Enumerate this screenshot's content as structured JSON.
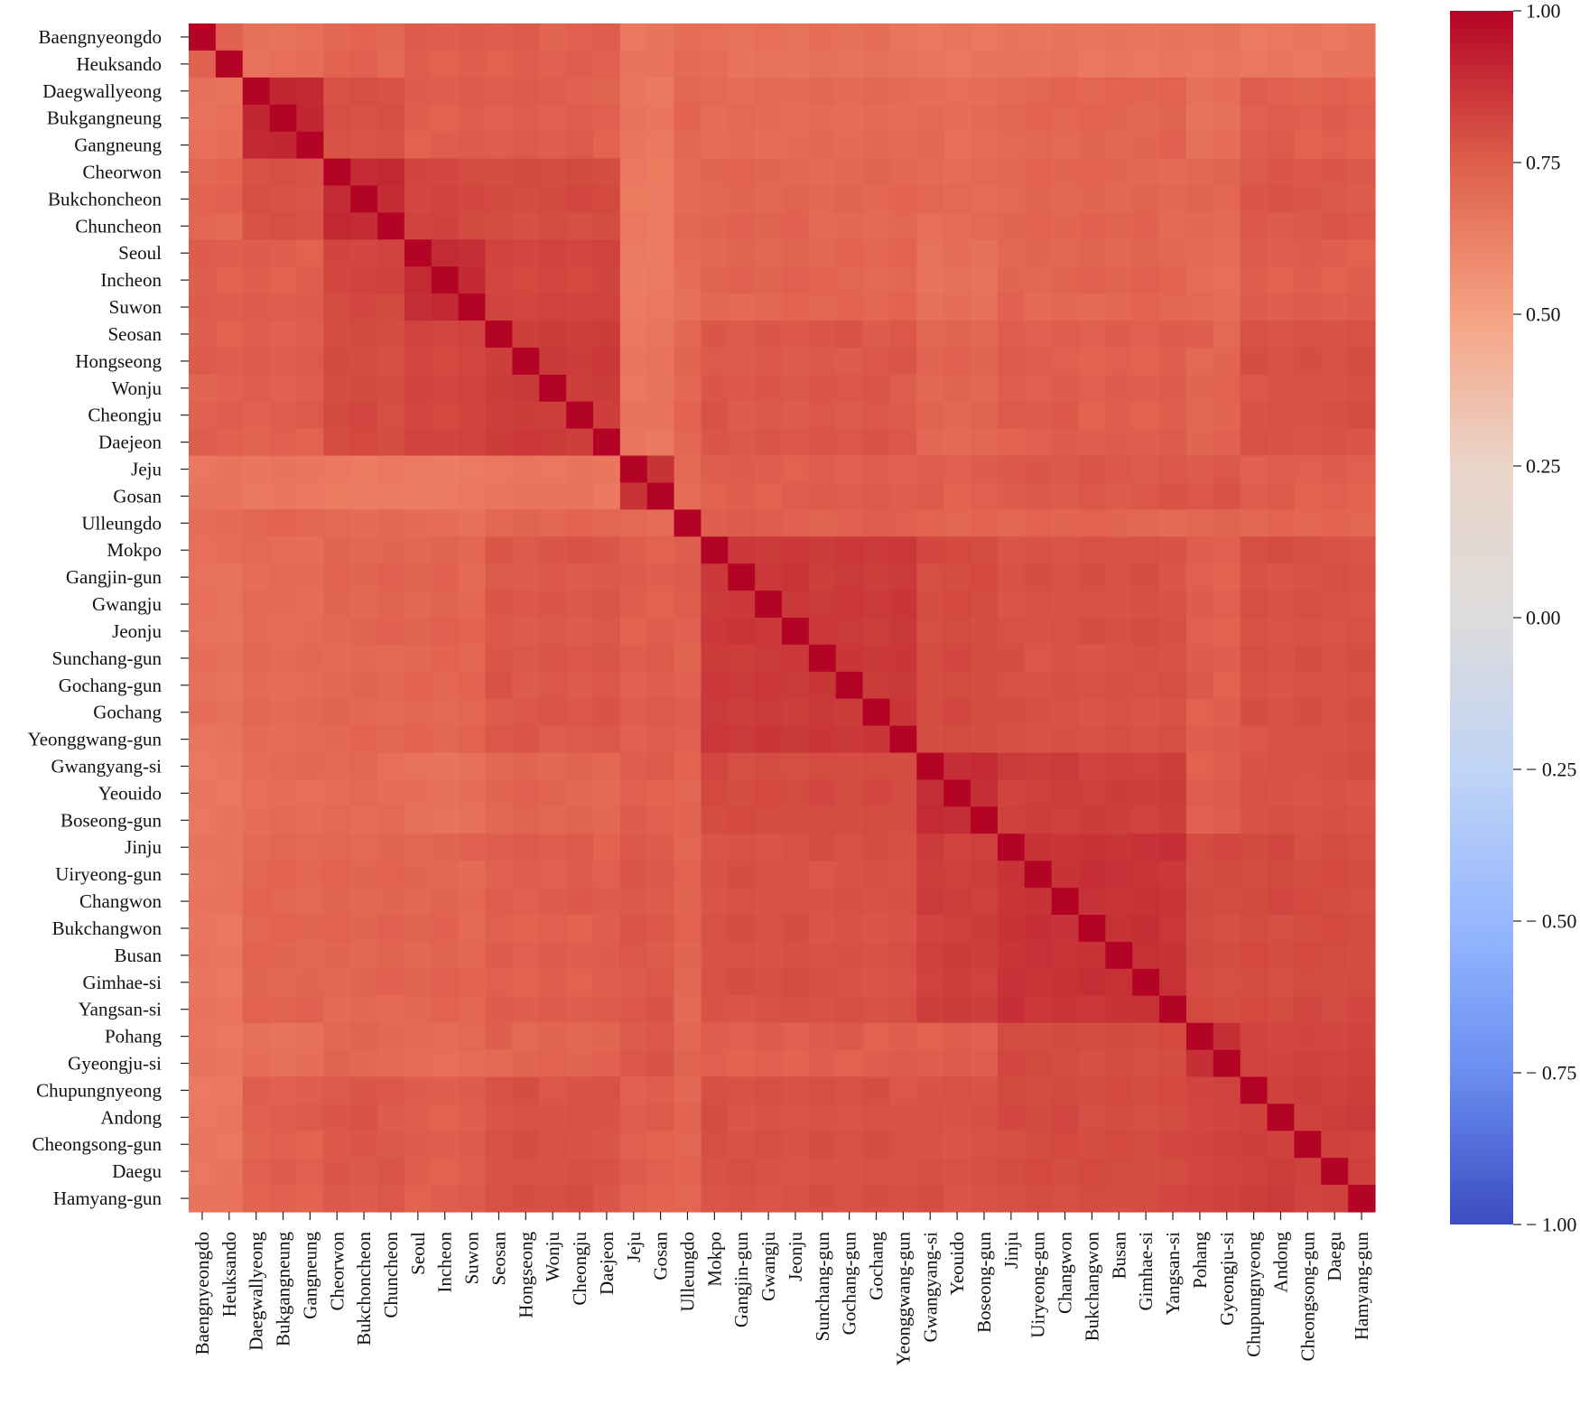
{
  "chart_data": {
    "type": "heatmap",
    "title": "",
    "xlabel": "",
    "ylabel": "",
    "colormap": "coolwarm",
    "vmin": -1.0,
    "vmax": 1.0,
    "colorbar_ticks": [
      1.0,
      0.75,
      0.5,
      0.25,
      0.0,
      -0.25,
      -0.5,
      -0.75,
      -1.0
    ],
    "colorbar_tick_labels": [
      "1.00",
      "0.75",
      "0.50",
      "0.25",
      "0.00",
      "− 0.25",
      "− 0.50",
      "− 0.75",
      "− 1.00"
    ],
    "stations": [
      "Baengnyeongdo",
      "Heuksando",
      "Daegwallyeong",
      "Bukgangneung",
      "Gangneung",
      "Cheorwon",
      "Bukchoncheon",
      "Chuncheon",
      "Seoul",
      "Incheon",
      "Suwon",
      "Seosan",
      "Hongseong",
      "Wonju",
      "Cheongju",
      "Daejeon",
      "Jeju",
      "Gosan",
      "Ulleungdo",
      "Mokpo",
      "Gangjin-gun",
      "Gwangju",
      "Jeonju",
      "Sunchang-gun",
      "Gochang-gun",
      "Gochang",
      "Yeonggwang-gun",
      "Gwangyang-si",
      "Yeouido",
      "Boseong-gun",
      "Jinju",
      "Uiryeong-gun",
      "Changwon",
      "Bukchangwon",
      "Busan",
      "Gimhae-si",
      "Yangsan-si",
      "Pohang",
      "Gyeongju-si",
      "Chupungnyeong",
      "Andong",
      "Cheongsong-gun",
      "Daegu",
      "Hamyang-gun"
    ],
    "regions": [
      0,
      0,
      1,
      1,
      1,
      2,
      2,
      2,
      3,
      3,
      3,
      4,
      4,
      4,
      4,
      4,
      5,
      5,
      6,
      7,
      7,
      7,
      7,
      7,
      7,
      7,
      7,
      8,
      8,
      8,
      9,
      9,
      9,
      9,
      9,
      9,
      9,
      10,
      10,
      11,
      11,
      11,
      11,
      11
    ],
    "region_matrix": [
      [
        0.74,
        0.68,
        0.72,
        0.74,
        0.74,
        0.66,
        0.7,
        0.68,
        0.66,
        0.66,
        0.66,
        0.66
      ],
      [
        0.68,
        0.92,
        0.78,
        0.74,
        0.74,
        0.66,
        0.72,
        0.7,
        0.7,
        0.72,
        0.68,
        0.74
      ],
      [
        0.72,
        0.78,
        0.9,
        0.82,
        0.8,
        0.64,
        0.7,
        0.72,
        0.7,
        0.72,
        0.72,
        0.76
      ],
      [
        0.74,
        0.74,
        0.82,
        0.9,
        0.82,
        0.64,
        0.7,
        0.72,
        0.68,
        0.72,
        0.7,
        0.74
      ],
      [
        0.74,
        0.74,
        0.8,
        0.82,
        0.85,
        0.66,
        0.72,
        0.76,
        0.72,
        0.74,
        0.72,
        0.78
      ],
      [
        0.66,
        0.66,
        0.64,
        0.64,
        0.66,
        0.88,
        0.7,
        0.74,
        0.74,
        0.76,
        0.76,
        0.74
      ],
      [
        0.7,
        0.72,
        0.7,
        0.7,
        0.72,
        0.7,
        0.88,
        0.74,
        0.72,
        0.72,
        0.72,
        0.72
      ],
      [
        0.68,
        0.7,
        0.72,
        0.72,
        0.76,
        0.74,
        0.74,
        0.86,
        0.8,
        0.78,
        0.74,
        0.78
      ],
      [
        0.66,
        0.7,
        0.7,
        0.68,
        0.72,
        0.74,
        0.72,
        0.8,
        0.9,
        0.84,
        0.74,
        0.78
      ],
      [
        0.66,
        0.72,
        0.72,
        0.72,
        0.74,
        0.76,
        0.72,
        0.78,
        0.84,
        0.88,
        0.8,
        0.8
      ],
      [
        0.66,
        0.68,
        0.72,
        0.7,
        0.72,
        0.76,
        0.72,
        0.74,
        0.74,
        0.8,
        0.9,
        0.82
      ],
      [
        0.66,
        0.74,
        0.76,
        0.74,
        0.78,
        0.74,
        0.72,
        0.78,
        0.78,
        0.8,
        0.82,
        0.84
      ]
    ]
  }
}
